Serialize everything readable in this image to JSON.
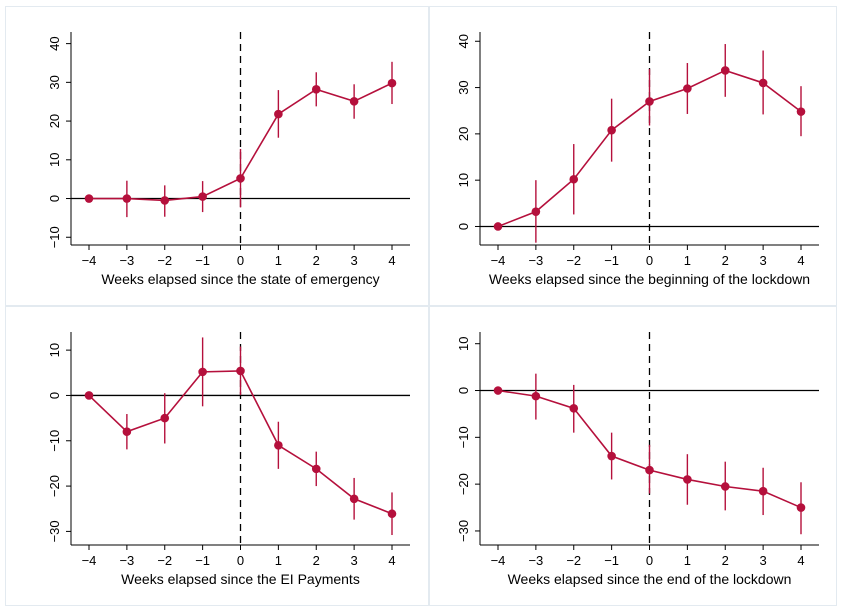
{
  "colors": {
    "series": "#b5103c",
    "background": "#ffffff",
    "panel_border": "#e3eaf0",
    "axis": "#000000"
  },
  "chart_data": [
    {
      "type": "line",
      "subtype": "event-study with confidence intervals",
      "xlabel": "Weeks elapsed since the state of emergency",
      "ylabel": "",
      "x": [
        -4,
        -3,
        -2,
        -1,
        0,
        1,
        2,
        3,
        4
      ],
      "x_ticks": [
        -4,
        -3,
        -2,
        -1,
        0,
        1,
        2,
        3,
        4
      ],
      "y_ticks": [
        -10,
        0,
        10,
        20,
        30,
        40
      ],
      "ylim": [
        -12,
        43
      ],
      "values": [
        0,
        0,
        -0.5,
        0.5,
        5.2,
        21.8,
        28.2,
        25.1,
        29.8
      ],
      "ci_low": [
        0,
        -4.8,
        -4.7,
        -3.5,
        -2.3,
        15.7,
        23.8,
        20.6,
        24.4
      ],
      "ci_high": [
        0,
        4.6,
        3.4,
        4.5,
        12.8,
        28.0,
        32.6,
        29.5,
        35.3
      ],
      "reference_line_y": 0,
      "event_line_x": 0,
      "grid": false
    },
    {
      "type": "line",
      "subtype": "event-study with confidence intervals",
      "xlabel": "Weeks elapsed since the beginning of the lockdown",
      "ylabel": "",
      "x": [
        -4,
        -3,
        -2,
        -1,
        0,
        1,
        2,
        3,
        4
      ],
      "x_ticks": [
        -4,
        -3,
        -2,
        -1,
        0,
        1,
        2,
        3,
        4
      ],
      "y_ticks": [
        0,
        10,
        20,
        30,
        40
      ],
      "ylim": [
        -4,
        42
      ],
      "values": [
        0,
        3.2,
        10.2,
        20.8,
        27.0,
        29.8,
        33.7,
        31.0,
        24.8
      ],
      "ci_low": [
        0,
        -3.5,
        2.6,
        14.0,
        21.8,
        24.3,
        28.0,
        24.2,
        19.5
      ],
      "ci_high": [
        0,
        10.0,
        17.8,
        27.6,
        34.0,
        35.3,
        39.4,
        38.0,
        30.3
      ],
      "reference_line_y": 0,
      "event_line_x": 0,
      "grid": false
    },
    {
      "type": "line",
      "subtype": "event-study with confidence intervals",
      "xlabel": "Weeks elapsed since the EI Payments",
      "ylabel": "",
      "x": [
        -4,
        -3,
        -2,
        -1,
        0,
        1,
        2,
        3,
        4
      ],
      "x_ticks": [
        -4,
        -3,
        -2,
        -1,
        0,
        1,
        2,
        3,
        4
      ],
      "y_ticks": [
        -30,
        -20,
        -10,
        0,
        10
      ],
      "ylim": [
        -33,
        14
      ],
      "values": [
        0,
        -8.0,
        -5.0,
        5.2,
        5.4,
        -11.0,
        -16.2,
        -22.8,
        -26.1
      ],
      "ci_low": [
        0,
        -11.9,
        -10.6,
        -2.4,
        0.1,
        -16.2,
        -20.0,
        -27.4,
        -30.8
      ],
      "ci_high": [
        0,
        -4.1,
        0.5,
        12.8,
        10.8,
        -5.8,
        -12.4,
        -18.2,
        -21.4
      ],
      "reference_line_y": 0,
      "event_line_x": 0,
      "grid": false
    },
    {
      "type": "line",
      "subtype": "event-study with confidence intervals",
      "xlabel": "Weeks elapsed since the end of the lockdown",
      "ylabel": "",
      "x": [
        -4,
        -3,
        -2,
        -1,
        0,
        1,
        2,
        3,
        4
      ],
      "x_ticks": [
        -4,
        -3,
        -2,
        -1,
        0,
        1,
        2,
        3,
        4
      ],
      "y_ticks": [
        -30,
        -20,
        -10,
        0,
        10
      ],
      "ylim": [
        -33,
        12.5
      ],
      "values": [
        0,
        -1.2,
        -3.8,
        -14.0,
        -17.0,
        -19.0,
        -20.5,
        -21.5,
        -25.0
      ],
      "ci_low": [
        0,
        -6.2,
        -9.0,
        -19.0,
        -22.0,
        -24.4,
        -25.6,
        -26.6,
        -30.7
      ],
      "ci_high": [
        0,
        3.6,
        1.2,
        -9.0,
        -11.6,
        -13.6,
        -15.2,
        -16.5,
        -19.6
      ],
      "reference_line_y": 0,
      "event_line_x": 0,
      "grid": false
    }
  ]
}
